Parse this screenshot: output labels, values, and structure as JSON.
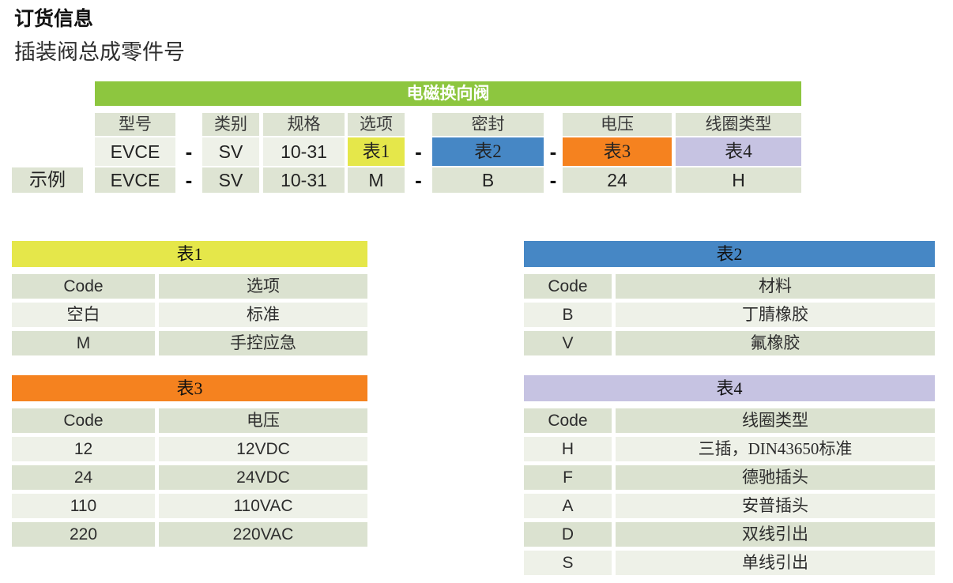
{
  "page": {
    "title": "订货信息",
    "subtitle": "插装阀总成零件号"
  },
  "colors": {
    "banner_green": "#8dc63f",
    "table1_yellow": "#e5e74a",
    "table2_blue": "#4687c5",
    "table3_orange": "#f5821f",
    "table4_purple": "#c6c3e2",
    "row_dark": "#dbe2d0",
    "row_light": "#eef1e8",
    "header_cell": "#dee4d3"
  },
  "main_table": {
    "banner": "电磁换向阀",
    "example_label": "示例",
    "dash": "-",
    "columns": [
      "型号",
      "类别",
      "规格",
      "选项",
      "密封",
      "电压",
      "线圈类型"
    ],
    "template_row": {
      "model": "EVCE",
      "category": "SV",
      "spec": "10-31",
      "option": "表1",
      "seal": "表2",
      "voltage": "表3",
      "coil": "表4"
    },
    "example_row": {
      "model": "EVCE",
      "category": "SV",
      "spec": "10-31",
      "option": "M",
      "seal": "B",
      "voltage": "24",
      "coil": "H"
    }
  },
  "tables": [
    {
      "title": "表1",
      "header_color": "#e5e74a",
      "col1_width": 181,
      "columns": [
        "Code",
        "选项"
      ],
      "rows": [
        [
          "空白",
          "标准"
        ],
        [
          "M",
          "手控应急"
        ]
      ]
    },
    {
      "title": "表2",
      "header_color": "#4687c5",
      "col1_width": 111,
      "columns": [
        "Code",
        "材料"
      ],
      "rows": [
        [
          "B",
          "丁腈橡胶"
        ],
        [
          "V",
          "氟橡胶"
        ]
      ]
    },
    {
      "title": "表3",
      "header_color": "#f5821f",
      "col1_width": 181,
      "columns": [
        "Code",
        "电压"
      ],
      "rows": [
        [
          "12",
          "12VDC"
        ],
        [
          "24",
          "24VDC"
        ],
        [
          "110",
          "110VAC"
        ],
        [
          "220",
          "220VAC"
        ]
      ]
    },
    {
      "title": "表4",
      "header_color": "#c6c3e2",
      "col1_width": 111,
      "columns": [
        "Code",
        "线圈类型"
      ],
      "rows": [
        [
          "H",
          "三插，DIN43650标准"
        ],
        [
          "F",
          "德驰插头"
        ],
        [
          "A",
          "安普插头"
        ],
        [
          "D",
          "双线引出"
        ],
        [
          "S",
          "单线引出"
        ]
      ]
    }
  ]
}
